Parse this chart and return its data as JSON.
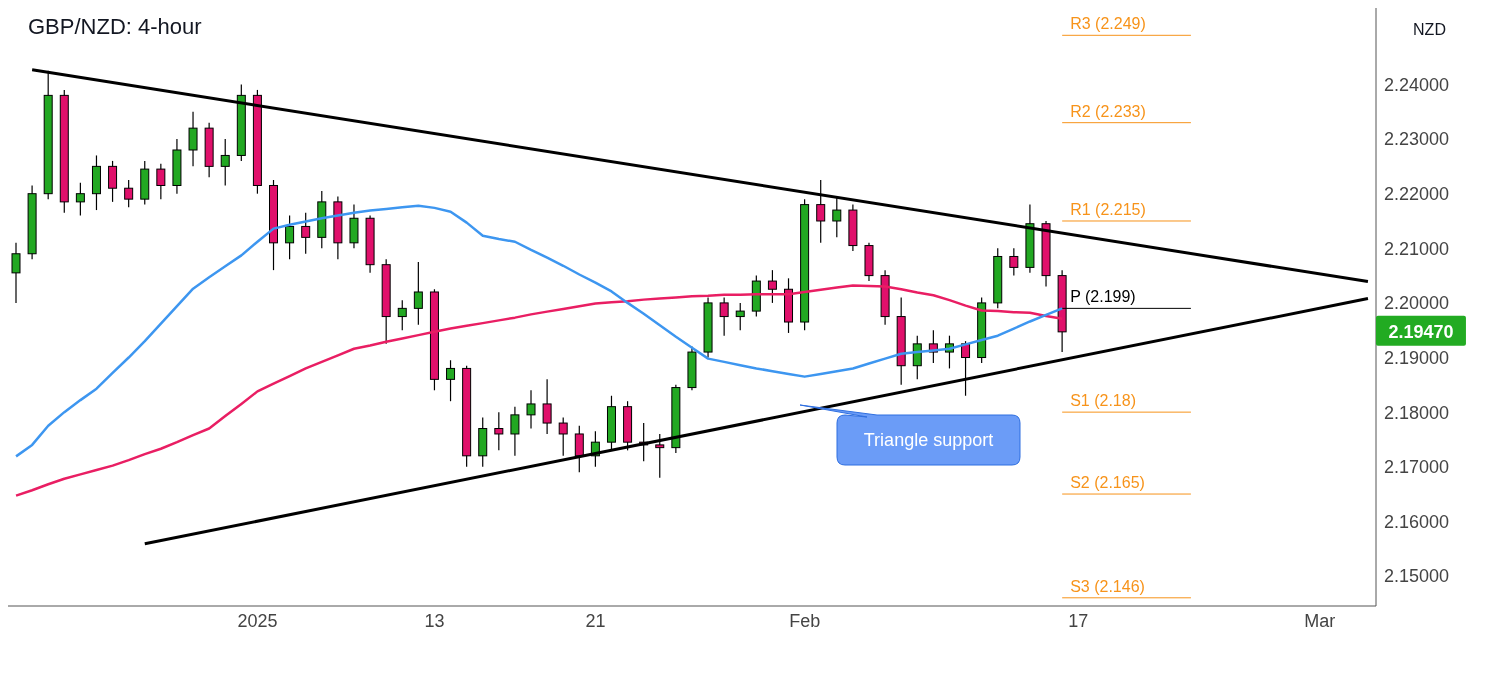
{
  "chart_data": {
    "type": "candlestick",
    "title": "GBP/NZD: 4-hour",
    "ylabel": "NZD",
    "categories": [
      null,
      null,
      null,
      null,
      null,
      null,
      null,
      null,
      null,
      null,
      null,
      null,
      null,
      null,
      null,
      "2025",
      null,
      null,
      null,
      null,
      null,
      null,
      null,
      null,
      null,
      null,
      "13",
      null,
      null,
      null,
      null,
      null,
      null,
      null,
      null,
      null,
      "21",
      null,
      null,
      null,
      null,
      null,
      null,
      null,
      null,
      null,
      null,
      null,
      null,
      "Feb",
      null,
      null,
      null,
      null,
      null,
      null,
      null,
      null,
      null,
      null,
      null,
      null,
      null,
      null,
      null,
      null,
      "17",
      null,
      null,
      null,
      null,
      null,
      null,
      null,
      null,
      null,
      null,
      null,
      null,
      null,
      null,
      "Mar",
      null,
      null,
      null
    ],
    "series": [
      {
        "type": "line",
        "color": "#e91e63",
        "values": [
          2.1647,
          2.1657,
          2.1668,
          2.1678,
          2.1686,
          2.1694,
          2.1702,
          2.1712,
          2.1723,
          2.1733,
          2.1745,
          2.1758,
          2.177,
          2.1793,
          2.1815,
          2.1838,
          2.1852,
          2.1866,
          2.188,
          2.1892,
          2.1904,
          2.1916,
          2.1922,
          2.1929,
          2.1935,
          2.1941,
          2.1947,
          2.1953,
          2.1958,
          2.1963,
          2.1968,
          2.1973,
          2.1979,
          2.1984,
          2.1989,
          2.1994,
          2.1999,
          2.2001,
          2.2003,
          2.2006,
          2.2008,
          2.201,
          2.2012,
          2.2013,
          2.2015,
          2.2015,
          2.2016,
          2.2016,
          2.2016,
          2.202,
          2.2024,
          2.2028,
          2.2032,
          2.2031,
          2.203,
          2.2025,
          2.2019,
          2.2014,
          2.2005,
          2.1995,
          2.1986,
          2.1985,
          2.1983,
          2.1982,
          2.1976,
          2.1971,
          null,
          null,
          null,
          null,
          null,
          null,
          null,
          null,
          null,
          null,
          null,
          null,
          null,
          null,
          null,
          null,
          null,
          null,
          null
        ]
      },
      {
        "type": "line",
        "color": "#3d96f0",
        "values": [
          2.1719,
          2.174,
          2.1775,
          2.18,
          2.1822,
          2.1843,
          2.1872,
          2.19,
          2.193,
          2.1962,
          2.1994,
          2.2026,
          2.2047,
          2.2067,
          2.2087,
          2.2112,
          2.2136,
          2.2143,
          2.2149,
          2.2155,
          2.216,
          2.2165,
          2.2169,
          2.2172,
          2.2175,
          2.2178,
          2.2174,
          2.2167,
          2.2147,
          2.2123,
          2.2117,
          2.2112,
          2.2097,
          2.2083,
          2.2068,
          2.2052,
          2.2037,
          2.2021,
          2.2,
          2.198,
          2.1959,
          2.1938,
          2.1918,
          2.1898,
          2.1892,
          2.1886,
          2.188,
          2.1875,
          2.187,
          2.1865,
          2.187,
          2.1875,
          2.188,
          2.1889,
          2.1898,
          2.1907,
          2.191,
          2.1913,
          2.1916,
          2.1924,
          2.1932,
          2.194,
          2.1953,
          2.1966,
          2.1978,
          2.199,
          null,
          null,
          null,
          null,
          null,
          null,
          null,
          null,
          null,
          null,
          null,
          null,
          null,
          null,
          null,
          null,
          null,
          null,
          null
        ]
      },
      {
        "type": "line",
        "color": "#000000",
        "values": [
          null,
          2.2427,
          null,
          null,
          null,
          null,
          null,
          null,
          null,
          null,
          null,
          null,
          null,
          null,
          null,
          null,
          null,
          null,
          null,
          null,
          null,
          null,
          null,
          null,
          null,
          null,
          null,
          null,
          null,
          null,
          null,
          null,
          null,
          null,
          null,
          null,
          null,
          null,
          null,
          null,
          null,
          null,
          null,
          null,
          null,
          null,
          null,
          null,
          null,
          null,
          null,
          null,
          null,
          null,
          null,
          null,
          null,
          null,
          null,
          null,
          null,
          null,
          null,
          null,
          null,
          null,
          null,
          null,
          null,
          null,
          null,
          null,
          null,
          null,
          null,
          null,
          null,
          null,
          null,
          null,
          null,
          null,
          null,
          null,
          2.2039
        ]
      },
      {
        "type": "line",
        "color": "#000000",
        "values": [
          null,
          null,
          null,
          null,
          null,
          null,
          null,
          null,
          2.1559,
          null,
          null,
          null,
          null,
          null,
          null,
          null,
          null,
          null,
          null,
          null,
          null,
          null,
          null,
          null,
          null,
          null,
          null,
          null,
          null,
          null,
          null,
          null,
          null,
          null,
          null,
          null,
          null,
          null,
          null,
          null,
          null,
          null,
          null,
          null,
          null,
          null,
          null,
          null,
          null,
          null,
          null,
          null,
          null,
          null,
          null,
          null,
          null,
          null,
          null,
          null,
          null,
          null,
          null,
          null,
          null,
          null,
          null,
          null,
          null,
          null,
          null,
          null,
          null,
          null,
          null,
          null,
          null,
          null,
          null,
          null,
          null,
          null,
          null,
          null,
          2.2008
        ]
      },
      {
        "ohlc": [
          [
            2.2055,
            2.211,
            2.2,
            2.209
          ],
          [
            2.209,
            2.2215,
            2.208,
            2.22
          ],
          [
            2.22,
            2.2425,
            2.219,
            2.238
          ],
          [
            2.238,
            2.239,
            2.2165,
            2.2185
          ],
          [
            2.2185,
            2.222,
            2.216,
            2.22
          ],
          [
            2.22,
            2.227,
            2.217,
            2.225
          ],
          [
            2.225,
            2.226,
            2.2185,
            2.221
          ],
          [
            2.221,
            2.2225,
            2.2175,
            2.219
          ],
          [
            2.219,
            2.226,
            2.218,
            2.2245
          ],
          [
            2.2245,
            2.2255,
            2.219,
            2.2215
          ],
          [
            2.2215,
            2.23,
            2.22,
            2.228
          ],
          [
            2.228,
            2.235,
            2.225,
            2.232
          ],
          [
            2.232,
            2.233,
            2.223,
            2.225
          ],
          [
            2.225,
            2.23,
            2.2215,
            2.227
          ],
          [
            2.227,
            2.24,
            2.226,
            2.238
          ],
          [
            2.238,
            2.239,
            2.22,
            2.2215
          ],
          [
            2.2215,
            2.2225,
            2.206,
            2.211
          ],
          [
            2.211,
            2.216,
            2.208,
            2.214
          ],
          [
            2.214,
            2.2165,
            2.209,
            2.212
          ],
          [
            2.212,
            2.2205,
            2.21,
            2.2185
          ],
          [
            2.2185,
            2.2195,
            2.208,
            2.211
          ],
          [
            2.211,
            2.218,
            2.21,
            2.2155
          ],
          [
            2.2155,
            2.216,
            2.2055,
            2.207
          ],
          [
            2.207,
            2.208,
            2.1925,
            2.1975
          ],
          [
            2.1975,
            2.2005,
            2.195,
            2.199
          ],
          [
            2.199,
            2.2075,
            2.196,
            2.202
          ],
          [
            2.202,
            2.2025,
            2.184,
            2.186
          ],
          [
            2.186,
            2.1895,
            2.182,
            2.188
          ],
          [
            2.188,
            2.1885,
            2.17,
            2.172
          ],
          [
            2.172,
            2.179,
            2.17,
            2.177
          ],
          [
            2.177,
            2.18,
            2.173,
            2.176
          ],
          [
            2.176,
            2.181,
            2.172,
            2.1795
          ],
          [
            2.1795,
            2.184,
            2.177,
            2.1815
          ],
          [
            2.1815,
            2.186,
            2.176,
            2.178
          ],
          [
            2.178,
            2.179,
            2.172,
            2.176
          ],
          [
            2.176,
            2.1775,
            2.169,
            2.172
          ],
          [
            2.172,
            2.1765,
            2.17,
            2.1745
          ],
          [
            2.1745,
            2.183,
            2.173,
            2.181
          ],
          [
            2.181,
            2.182,
            2.173,
            2.1745
          ],
          [
            2.1745,
            2.178,
            2.171,
            2.174
          ],
          [
            2.174,
            2.176,
            2.168,
            2.1735
          ],
          [
            2.1735,
            2.185,
            2.1725,
            2.1845
          ],
          [
            2.1845,
            2.192,
            2.184,
            2.191
          ],
          [
            2.191,
            2.201,
            2.19,
            2.2
          ],
          [
            2.2,
            2.201,
            2.194,
            2.1975
          ],
          [
            2.1975,
            2.2,
            2.195,
            2.1985
          ],
          [
            2.1985,
            2.205,
            2.1975,
            2.204
          ],
          [
            2.204,
            2.206,
            2.2,
            2.2025
          ],
          [
            2.2025,
            2.2045,
            2.1945,
            2.1965
          ],
          [
            2.1965,
            2.219,
            2.195,
            2.218
          ],
          [
            2.218,
            2.2225,
            2.211,
            2.215
          ],
          [
            2.215,
            2.2195,
            2.212,
            2.217
          ],
          [
            2.217,
            2.218,
            2.2095,
            2.2105
          ],
          [
            2.2105,
            2.211,
            2.204,
            2.205
          ],
          [
            2.205,
            2.206,
            2.196,
            2.1975
          ],
          [
            2.1975,
            2.201,
            2.185,
            2.1885
          ],
          [
            2.1885,
            2.194,
            2.186,
            2.1925
          ],
          [
            2.1925,
            2.195,
            2.189,
            2.191
          ],
          [
            2.191,
            2.194,
            2.188,
            2.1925
          ],
          [
            2.1925,
            2.193,
            2.183,
            2.19
          ],
          [
            2.19,
            2.201,
            2.189,
            2.2
          ],
          [
            2.2,
            2.21,
            2.199,
            2.2085
          ],
          [
            2.2085,
            2.21,
            2.205,
            2.2065
          ],
          [
            2.2065,
            2.218,
            2.2055,
            2.2145
          ],
          [
            2.2145,
            2.215,
            2.203,
            2.205
          ],
          [
            2.205,
            2.206,
            2.191,
            2.1947
          ],
          null,
          null,
          null,
          null,
          null,
          null,
          null,
          null,
          null,
          null,
          null,
          null,
          null,
          null,
          null,
          null,
          null,
          null,
          null
        ]
      }
    ],
    "ylim": [
      2.1445,
      2.254
    ],
    "yticks": [
      {
        "value": 2.15,
        "label": "2.15000"
      },
      {
        "value": 2.16,
        "label": "2.16000"
      },
      {
        "value": 2.17,
        "label": "2.17000"
      },
      {
        "value": 2.18,
        "label": "2.18000"
      },
      {
        "value": 2.19,
        "label": "2.19000"
      },
      {
        "value": 2.2,
        "label": "2.20000"
      },
      {
        "value": 2.21,
        "label": "2.21000"
      },
      {
        "value": 2.22,
        "label": "2.22000"
      },
      {
        "value": 2.23,
        "label": "2.23000"
      },
      {
        "value": 2.24,
        "label": "2.24000"
      }
    ],
    "ref_lines": [
      {
        "axis": "y",
        "value": 2.249,
        "label": "R3 (2.249)",
        "color": "#f7931a"
      },
      {
        "axis": "y",
        "value": 2.233,
        "label": "R2 (2.233)",
        "color": "#f7931a"
      },
      {
        "axis": "y",
        "value": 2.215,
        "label": "R1 (2.215)",
        "color": "#f7931a"
      },
      {
        "axis": "y",
        "value": 2.199,
        "label": "P (2.199)",
        "color": "#000000"
      },
      {
        "axis": "y",
        "value": 2.18,
        "label": "S1 (2.18)",
        "color": "#f7931a"
      },
      {
        "axis": "y",
        "value": 2.165,
        "label": "S2 (2.165)",
        "color": "#f7931a"
      },
      {
        "axis": "y",
        "value": 2.146,
        "label": "S3 (2.146)",
        "color": "#f7931a"
      }
    ],
    "annotations": [
      "Triangle support",
      "2.19470"
    ]
  }
}
